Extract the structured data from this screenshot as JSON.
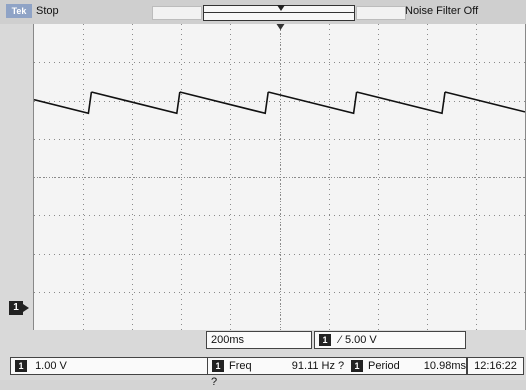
{
  "header": {
    "logo": "Tek",
    "status": "Stop",
    "filter": "Noise Filter Off"
  },
  "colors": {
    "trace": "#111111",
    "grid": "#8a8a8a",
    "screen_bg": "#f4f4f4",
    "chip_bg": "#222222"
  },
  "screen": {
    "channel_marker": "1"
  },
  "bottom": {
    "timebase": "200ms",
    "trigger_channel": "1",
    "trigger_edge_icon": "rising-edge-icon",
    "trigger_level": "5.00 V",
    "ch1_chip": "1",
    "ch1_scale": "1.00 V",
    "freq_chip": "1",
    "freq_label": "Freq",
    "freq_value": "91.11 Hz",
    "freq_flag": "?",
    "period_chip": "1",
    "period_label": "Period",
    "period_value": "10.98ms",
    "period_flag": "?",
    "clock": "12:16:22"
  }
}
